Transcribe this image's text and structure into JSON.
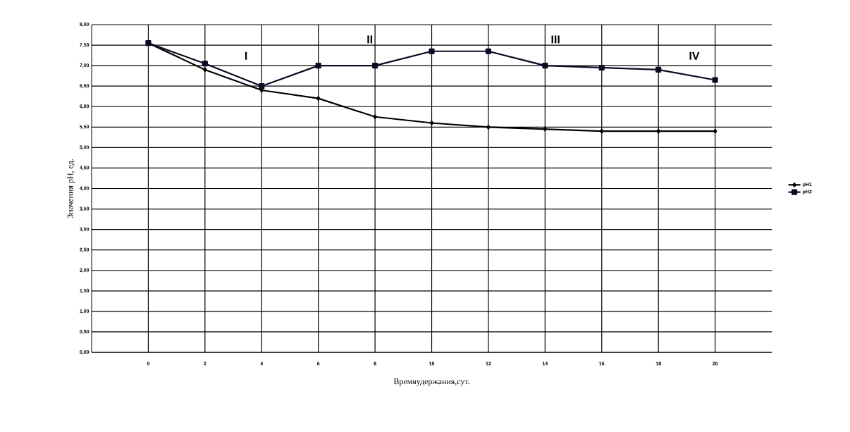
{
  "chart_data": {
    "type": "line",
    "xlabel": "Времяудержания,сут.",
    "ylabel": "Значения рН, ед.",
    "categories": [
      "0",
      "2",
      "4",
      "6",
      "8",
      "10",
      "12",
      "14",
      "16",
      "18",
      "20"
    ],
    "series": [
      {
        "name": "pH1",
        "color": "#000000",
        "marker": "diamond",
        "values": [
          7.55,
          6.9,
          6.4,
          6.2,
          5.75,
          5.6,
          5.5,
          5.45,
          5.4,
          5.4,
          5.4
        ]
      },
      {
        "name": "pH2",
        "color": "#0a0a23",
        "marker": "square",
        "values": [
          7.55,
          7.05,
          6.5,
          7.0,
          7.0,
          7.35,
          7.35,
          7.0,
          6.95,
          6.9,
          6.65
        ]
      }
    ],
    "ylim": [
      0,
      8
    ],
    "yticks": [
      {
        "value": 0,
        "label": "0,00"
      },
      {
        "value": 0.5,
        "label": "0,50"
      },
      {
        "value": 1,
        "label": "1,00"
      },
      {
        "value": 1.5,
        "label": "1,50"
      },
      {
        "value": 2,
        "label": "2,00"
      },
      {
        "value": 2.5,
        "label": "2,50"
      },
      {
        "value": 3,
        "label": "3,00"
      },
      {
        "value": 3.5,
        "label": "3,50"
      },
      {
        "value": 4,
        "label": "4,00"
      },
      {
        "value": 4.5,
        "label": "4,50"
      },
      {
        "value": 5,
        "label": "5,00"
      },
      {
        "value": 5.5,
        "label": "5,50"
      },
      {
        "value": 6,
        "label": "6,00"
      },
      {
        "value": 6.5,
        "label": "6,50"
      },
      {
        "value": 7,
        "label": "7,00"
      },
      {
        "value": 7.5,
        "label": "7,50"
      },
      {
        "value": 8,
        "label": "8,00"
      }
    ],
    "annotations": [
      "I",
      "II",
      "III",
      "IV"
    ],
    "grid": true,
    "legend": "right",
    "line_style": "solid"
  }
}
